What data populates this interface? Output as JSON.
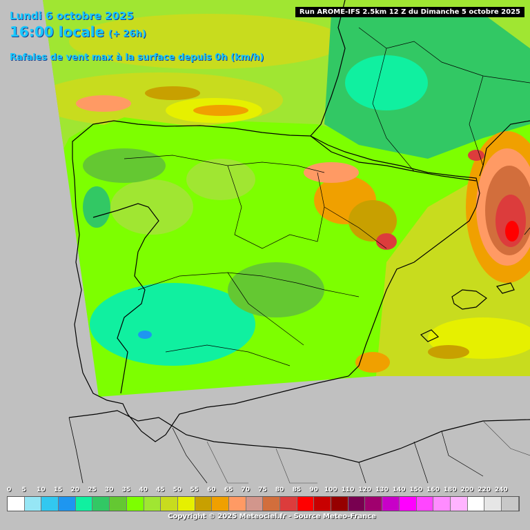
{
  "header": {
    "date": "Lundi 6 octobre 2025",
    "time": "16:00 locale",
    "lead": "(+ 26h)",
    "parameter": "Rafales de vent max à la surface depuis 0h (km/h)"
  },
  "run_info": "Run AROME-IFS 2.5km 12 Z du Dimanche 5 octobre 2025",
  "copyright": "Copyright © 2025 Meteociel.fr - Source Meteo-France",
  "colors": {
    "background": "#c0c0c0",
    "title_blue": "#19c8ff",
    "border_black": "#000000"
  },
  "legend": {
    "labels": [
      "0",
      "5",
      "10",
      "15",
      "20",
      "25",
      "30",
      "35",
      "40",
      "45",
      "50",
      "55",
      "60",
      "65",
      "70",
      "75",
      "80",
      "85",
      "90",
      "100",
      "110",
      "120",
      "130",
      "140",
      "150",
      "160",
      "180",
      "200",
      "220",
      "240"
    ],
    "colors": [
      "#ffffff",
      "#96e6f5",
      "#32c8f0",
      "#1e96f0",
      "#10f0a0",
      "#32c864",
      "#64c832",
      "#7dff00",
      "#a0e632",
      "#c8dc1e",
      "#e6f000",
      "#c8a000",
      "#f0a000",
      "#ff9a64",
      "#d2968c",
      "#d26e3c",
      "#dc3c3c",
      "#ff0000",
      "#c80000",
      "#960000",
      "#780050",
      "#a0006e",
      "#c800c8",
      "#ff00ff",
      "#ff46ff",
      "#ff8cff",
      "#ffb4ff",
      "#ffffff",
      "#e6e6e6",
      "#c8c8c8"
    ]
  }
}
